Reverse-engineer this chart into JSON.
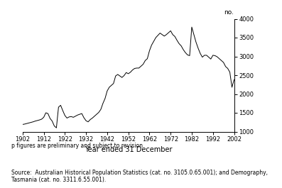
{
  "xlabel": "Year ended 31 December",
  "ylabel": "no.",
  "ylim": [
    1000,
    4000
  ],
  "xlim": [
    1902,
    2002
  ],
  "yticks": [
    1000,
    1500,
    2000,
    2500,
    3000,
    3500,
    4000
  ],
  "xticks": [
    1902,
    1912,
    1922,
    1932,
    1942,
    1952,
    1962,
    1972,
    1982,
    1992,
    2002
  ],
  "line_color": "#000000",
  "background_color": "#ffffff",
  "footnote1": "p figures are preliminary and subject to revision",
  "footnote2": "Source:  Australian Historical Population Statistics (cat. no. 3105.0.65.001); and Demography,\nTasmania (cat. no. 3311.6.55.001).",
  "years": [
    1902,
    1903,
    1904,
    1905,
    1906,
    1907,
    1908,
    1909,
    1910,
    1911,
    1912,
    1913,
    1914,
    1915,
    1916,
    1917,
    1918,
    1919,
    1920,
    1921,
    1922,
    1923,
    1924,
    1925,
    1926,
    1927,
    1928,
    1929,
    1930,
    1931,
    1932,
    1933,
    1934,
    1935,
    1936,
    1937,
    1938,
    1939,
    1940,
    1941,
    1942,
    1943,
    1944,
    1945,
    1946,
    1947,
    1948,
    1949,
    1950,
    1951,
    1952,
    1953,
    1954,
    1955,
    1956,
    1957,
    1958,
    1959,
    1960,
    1961,
    1962,
    1963,
    1964,
    1965,
    1966,
    1967,
    1968,
    1969,
    1970,
    1971,
    1972,
    1973,
    1974,
    1975,
    1976,
    1977,
    1978,
    1979,
    1980,
    1981,
    1982,
    1983,
    1984,
    1985,
    1986,
    1987,
    1988,
    1989,
    1990,
    1991,
    1992,
    1993,
    1994,
    1995,
    1996,
    1997,
    1998,
    1999,
    2000,
    2001,
    2002
  ],
  "values": [
    1190,
    1200,
    1215,
    1230,
    1245,
    1260,
    1280,
    1295,
    1310,
    1330,
    1380,
    1500,
    1480,
    1350,
    1280,
    1150,
    1100,
    1650,
    1700,
    1560,
    1430,
    1360,
    1390,
    1400,
    1380,
    1410,
    1440,
    1460,
    1480,
    1370,
    1290,
    1260,
    1320,
    1360,
    1410,
    1460,
    1510,
    1590,
    1750,
    1880,
    2080,
    2180,
    2230,
    2280,
    2480,
    2520,
    2480,
    2440,
    2490,
    2570,
    2540,
    2580,
    2640,
    2680,
    2690,
    2690,
    2740,
    2790,
    2890,
    2940,
    3150,
    3300,
    3400,
    3500,
    3560,
    3620,
    3580,
    3540,
    3580,
    3630,
    3680,
    3580,
    3530,
    3430,
    3340,
    3280,
    3180,
    3100,
    3040,
    3020,
    3780,
    3580,
    3380,
    3220,
    3080,
    2980,
    3030,
    3030,
    2980,
    2930,
    3030,
    3020,
    2990,
    2940,
    2890,
    2840,
    2730,
    2680,
    2580,
    2180,
    2380
  ]
}
